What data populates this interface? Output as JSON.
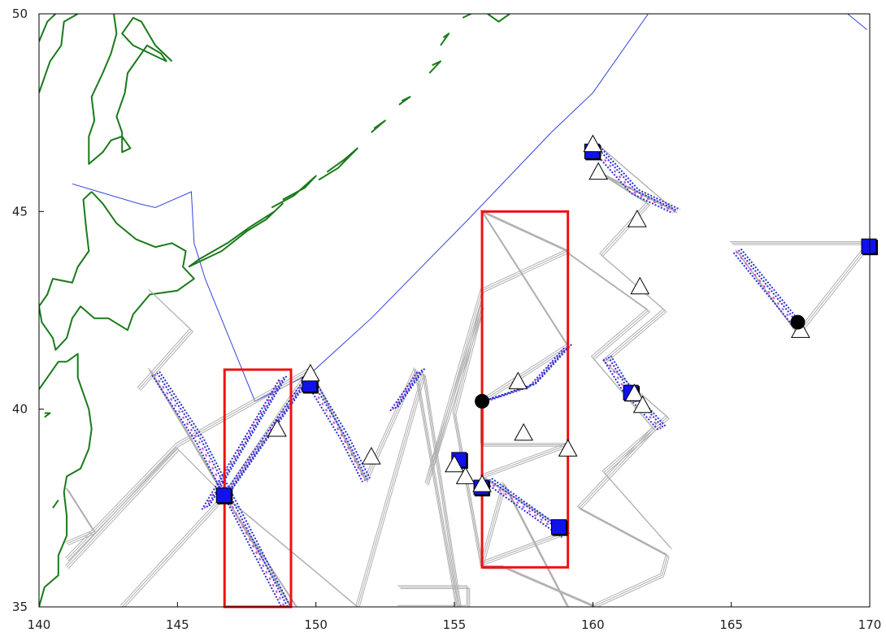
{
  "colors": {
    "frame": "#000000",
    "coast": "#1a7a1a",
    "boundary": "#3344dd",
    "track": "#b0b0b0",
    "track_blue": "#2233cc",
    "track_magenta": "#dd44dd",
    "region": "#ee1111",
    "square": "#1111ee",
    "triangle_fill": "#ffffff",
    "circle": "#000000"
  },
  "axes": {
    "x_ticks": [
      "140",
      "145",
      "150",
      "155",
      "160",
      "165",
      "170"
    ],
    "y_ticks": [
      "35",
      "40",
      "45",
      "50"
    ],
    "x_range": [
      140,
      170
    ],
    "y_range": [
      35,
      50
    ]
  },
  "map_data": {
    "regions": [
      {
        "lon": [
          146.7,
          149.1
        ],
        "lat": [
          35.0,
          41.0
        ]
      },
      {
        "lon": [
          156.0,
          159.1
        ],
        "lat": [
          36.0,
          45.0
        ]
      }
    ],
    "boundary_lines": [
      [
        [
          141.2,
          45.7
        ],
        [
          143.6,
          45.2
        ],
        [
          144.2,
          45.1
        ],
        [
          145.5,
          45.5
        ],
        [
          145.6,
          44.2
        ],
        [
          146.0,
          43.3
        ],
        [
          147.8,
          40.2
        ],
        [
          149.8,
          40.9
        ],
        [
          152.0,
          42.3
        ],
        [
          155.5,
          44.8
        ],
        [
          158.5,
          47.0
        ],
        [
          160.0,
          48.0
        ],
        [
          162.0,
          50.0
        ]
      ],
      [
        [
          169.2,
          50.0
        ],
        [
          169.9,
          49.6
        ]
      ]
    ],
    "coastlines": [
      [
        [
          140.0,
          49.3
        ],
        [
          140.3,
          49.8
        ],
        [
          140.6,
          50.0
        ]
      ],
      [
        [
          140.0,
          48.0
        ],
        [
          140.4,
          48.8
        ],
        [
          140.8,
          49.2
        ],
        [
          140.9,
          49.8
        ],
        [
          141.4,
          50.0
        ]
      ],
      [
        [
          142.7,
          50.0
        ],
        [
          142.8,
          49.5
        ],
        [
          142.6,
          49.0
        ],
        [
          142.3,
          48.5
        ],
        [
          141.9,
          47.9
        ],
        [
          142.0,
          47.3
        ],
        [
          141.8,
          46.9
        ],
        [
          141.8,
          46.2
        ],
        [
          142.3,
          46.5
        ],
        [
          142.6,
          46.8
        ],
        [
          143.0,
          46.9
        ],
        [
          143.3,
          46.6
        ],
        [
          143.0,
          46.5
        ],
        [
          143.0,
          47.0
        ],
        [
          142.8,
          47.4
        ],
        [
          143.1,
          48.0
        ],
        [
          143.2,
          48.5
        ],
        [
          143.9,
          49.2
        ],
        [
          144.4,
          49.0
        ],
        [
          144.6,
          48.8
        ],
        [
          143.4,
          49.2
        ],
        [
          143.0,
          49.5
        ],
        [
          143.4,
          49.9
        ],
        [
          143.7,
          49.8
        ],
        [
          144.2,
          49.2
        ],
        [
          144.8,
          48.8
        ]
      ],
      [
        [
          141.9,
          45.5
        ],
        [
          141.6,
          45.3
        ],
        [
          141.7,
          44.6
        ],
        [
          141.8,
          44.0
        ],
        [
          141.4,
          43.6
        ],
        [
          141.2,
          43.2
        ],
        [
          140.5,
          43.3
        ],
        [
          140.3,
          42.9
        ],
        [
          140.0,
          42.6
        ],
        [
          140.1,
          42.2
        ],
        [
          140.5,
          41.8
        ],
        [
          140.6,
          41.5
        ],
        [
          141.0,
          41.8
        ],
        [
          141.2,
          42.3
        ],
        [
          141.5,
          42.6
        ],
        [
          142.0,
          42.3
        ],
        [
          142.5,
          42.3
        ],
        [
          143.2,
          42.0
        ],
        [
          143.4,
          42.4
        ],
        [
          144.0,
          42.9
        ],
        [
          145.0,
          43.0
        ],
        [
          145.6,
          43.3
        ],
        [
          145.2,
          43.6
        ],
        [
          145.3,
          44.0
        ],
        [
          144.8,
          44.2
        ],
        [
          144.2,
          44.1
        ],
        [
          143.5,
          44.3
        ],
        [
          142.8,
          44.7
        ],
        [
          142.3,
          45.2
        ],
        [
          141.9,
          45.5
        ]
      ],
      [
        [
          145.4,
          43.6
        ],
        [
          146.0,
          43.8
        ],
        [
          146.6,
          44.0
        ],
        [
          147.5,
          44.5
        ],
        [
          148.2,
          44.8
        ],
        [
          148.8,
          45.2
        ],
        [
          148.5,
          45.0
        ],
        [
          147.6,
          44.6
        ],
        [
          146.8,
          44.2
        ],
        [
          145.8,
          43.8
        ],
        [
          145.4,
          43.6
        ]
      ],
      [
        [
          148.4,
          45.1
        ],
        [
          149.2,
          45.4
        ],
        [
          150.0,
          45.9
        ],
        [
          149.6,
          45.6
        ],
        [
          148.8,
          45.3
        ]
      ],
      [
        [
          150.1,
          45.8
        ],
        [
          150.8,
          46.1
        ],
        [
          151.5,
          46.6
        ],
        [
          151.0,
          46.3
        ],
        [
          150.4,
          46.0
        ]
      ],
      [
        [
          152.0,
          47.0
        ],
        [
          152.5,
          47.3
        ],
        [
          152.1,
          47.1
        ]
      ],
      [
        [
          153.0,
          47.7
        ],
        [
          153.4,
          47.9
        ],
        [
          153.1,
          47.8
        ]
      ],
      [
        [
          154.1,
          48.5
        ],
        [
          154.5,
          48.8
        ],
        [
          154.2,
          48.7
        ]
      ],
      [
        [
          154.5,
          49.2
        ],
        [
          154.8,
          49.5
        ],
        [
          154.6,
          49.4
        ]
      ],
      [
        [
          155.3,
          49.9
        ],
        [
          155.6,
          50.0
        ]
      ],
      [
        [
          156.2,
          50.0
        ],
        [
          156.6,
          49.8
        ],
        [
          157.0,
          50.0
        ]
      ],
      [
        [
          141.0,
          41.2
        ],
        [
          141.4,
          41.4
        ],
        [
          141.4,
          40.8
        ],
        [
          141.6,
          40.4
        ],
        [
          141.8,
          40.0
        ],
        [
          141.9,
          39.5
        ],
        [
          141.8,
          39.0
        ],
        [
          141.5,
          38.5
        ],
        [
          141.0,
          38.3
        ],
        [
          140.9,
          37.9
        ],
        [
          141.0,
          37.3
        ],
        [
          141.0,
          36.8
        ],
        [
          140.7,
          36.3
        ],
        [
          140.7,
          35.8
        ],
        [
          140.2,
          35.5
        ],
        [
          140.0,
          35.0
        ]
      ],
      [
        [
          140.0,
          40.5
        ],
        [
          140.3,
          40.8
        ],
        [
          140.7,
          41.2
        ],
        [
          141.0,
          41.2
        ]
      ],
      [
        [
          140.2,
          39.9
        ],
        [
          140.4,
          39.9
        ],
        [
          140.2,
          39.8
        ]
      ],
      [
        [
          140.5,
          37.5
        ],
        [
          140.7,
          37.7
        ]
      ]
    ],
    "tracks": [
      [
        [
          141.0,
          36.2
        ],
        [
          145.0,
          39.1
        ],
        [
          149.8,
          41.0
        ],
        [
          151.8,
          38.2
        ],
        [
          153.6,
          41.0
        ],
        [
          155.1,
          35.0
        ]
      ],
      [
        [
          141.0,
          36.0
        ],
        [
          145.0,
          39.0
        ],
        [
          146.7,
          37.8
        ],
        [
          149.3,
          35.0
        ]
      ],
      [
        [
          143.0,
          35.0
        ],
        [
          146.7,
          37.8
        ],
        [
          149.8,
          41.0
        ]
      ],
      [
        [
          144.0,
          41.0
        ],
        [
          146.7,
          37.8
        ],
        [
          149.8,
          36.0
        ],
        [
          151.5,
          35.0
        ],
        [
          153.9,
          40.9
        ],
        [
          155.2,
          35.0
        ]
      ],
      [
        [
          144.0,
          43.0
        ],
        [
          145.5,
          42.0
        ],
        [
          143.6,
          40.5
        ]
      ],
      [
        [
          144.0,
          41.0
        ],
        [
          149.1,
          35.0
        ]
      ],
      [
        [
          141.0,
          38.0
        ],
        [
          142.0,
          36.9
        ],
        [
          141.0,
          36.6
        ]
      ],
      [
        [
          156.0,
          42.6
        ],
        [
          155.0,
          39.9
        ],
        [
          156.0,
          36.0
        ],
        [
          156.8,
          36.0
        ],
        [
          160.1,
          35.0
        ]
      ],
      [
        [
          156.0,
          43.0
        ],
        [
          159.1,
          44.0
        ],
        [
          156.0,
          45.0
        ],
        [
          159.1,
          41.6
        ],
        [
          156.0,
          40.2
        ],
        [
          156.0,
          39.1
        ],
        [
          159.1,
          39.1
        ],
        [
          156.0,
          38.3
        ],
        [
          159.1,
          36.9
        ],
        [
          156.0,
          36.1
        ],
        [
          156.8,
          38.1
        ],
        [
          159.1,
          35.0
        ]
      ],
      [
        [
          153.0,
          35.5
        ],
        [
          155.5,
          35.5
        ],
        [
          155.5,
          35.0
        ],
        [
          153.0,
          35.0
        ]
      ],
      [
        [
          159.0,
          44.0
        ],
        [
          162.0,
          42.5
        ],
        [
          160.0,
          41.3
        ],
        [
          162.2,
          39.5
        ],
        [
          159.5,
          37.5
        ],
        [
          162.7,
          36.3
        ],
        [
          162.5,
          35.8
        ],
        [
          160.0,
          35.0
        ]
      ],
      [
        [
          160.0,
          46.8
        ],
        [
          163.0,
          45.0
        ],
        [
          160.2,
          46.0
        ],
        [
          162.0,
          45.2
        ],
        [
          160.3,
          43.9
        ],
        [
          162.6,
          42.5
        ],
        [
          160.4,
          41.2
        ],
        [
          162.7,
          39.8
        ],
        [
          160.4,
          38.4
        ],
        [
          162.8,
          36.5
        ]
      ],
      [
        [
          165.0,
          44.2
        ],
        [
          170.0,
          44.2
        ],
        [
          167.4,
          41.9
        ],
        [
          165.2,
          44.0
        ]
      ],
      [
        [
          156.0,
          43.0
        ],
        [
          154.0,
          38.1
        ],
        [
          156.0,
          42.6
        ]
      ]
    ],
    "dense_tracks": [
      [
        [
          144.2,
          40.9
        ],
        [
          145.8,
          39.2
        ],
        [
          148.9,
          35.0
        ]
      ],
      [
        [
          146.7,
          37.8
        ],
        [
          149.7,
          40.8
        ]
      ],
      [
        [
          146.0,
          37.5
        ],
        [
          148.8,
          40.8
        ]
      ],
      [
        [
          149.7,
          40.8
        ],
        [
          151.0,
          39.3
        ],
        [
          151.8,
          38.2
        ]
      ],
      [
        [
          152.8,
          40.0
        ],
        [
          153.8,
          41.0
        ]
      ],
      [
        [
          156.1,
          40.2
        ],
        [
          157.8,
          40.6
        ],
        [
          159.1,
          41.6
        ]
      ],
      [
        [
          156.2,
          38.2
        ],
        [
          157.0,
          37.8
        ],
        [
          159.0,
          36.8
        ]
      ],
      [
        [
          160.1,
          46.6
        ],
        [
          161.5,
          45.5
        ],
        [
          163.0,
          45.0
        ]
      ],
      [
        [
          160.5,
          41.3
        ],
        [
          161.2,
          40.5
        ],
        [
          162.5,
          39.5
        ]
      ],
      [
        [
          165.2,
          44.0
        ],
        [
          167.4,
          42.1
        ]
      ]
    ],
    "squares": [
      [
        146.7,
        37.8
      ],
      [
        149.8,
        40.6
      ],
      [
        155.2,
        38.7
      ],
      [
        156.0,
        38.0
      ],
      [
        158.8,
        37.0
      ],
      [
        160.0,
        46.5
      ],
      [
        161.4,
        40.4
      ],
      [
        170.0,
        44.1
      ]
    ],
    "triangles": [
      [
        149.8,
        40.9
      ],
      [
        148.6,
        39.5
      ],
      [
        152.0,
        38.8
      ],
      [
        155.0,
        38.6
      ],
      [
        155.4,
        38.3
      ],
      [
        156.0,
        38.1
      ],
      [
        157.3,
        40.7
      ],
      [
        157.5,
        39.4
      ],
      [
        159.1,
        39.0
      ],
      [
        160.0,
        46.7
      ],
      [
        160.2,
        46.0
      ],
      [
        161.6,
        44.8
      ],
      [
        161.7,
        43.1
      ],
      [
        161.5,
        40.4
      ],
      [
        161.8,
        40.1
      ],
      [
        167.5,
        42.0
      ]
    ],
    "circles": [
      [
        156.0,
        40.2
      ],
      [
        167.4,
        42.2
      ]
    ]
  }
}
